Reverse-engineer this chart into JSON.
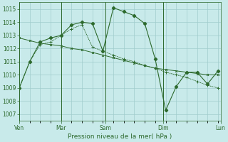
{
  "bg_color": "#c8eaea",
  "grid_color": "#a0cccc",
  "line_color": "#2d6a2d",
  "xlabel": "Pression niveau de la mer( hPa )",
  "ylim": [
    1006.5,
    1015.5
  ],
  "yticks": [
    1007,
    1008,
    1009,
    1010,
    1011,
    1012,
    1013,
    1014,
    1015
  ],
  "day_tick_pos": [
    0,
    16,
    33,
    55,
    77
  ],
  "day_tick_labels": [
    "Ven",
    "Mar",
    "Sam",
    "Dim",
    "Lun"
  ],
  "total_points": 77,
  "series1_x": [
    0,
    4,
    8,
    12,
    16,
    20,
    24,
    28,
    32,
    36,
    40,
    44,
    48,
    52,
    56,
    60,
    64,
    68,
    72,
    76
  ],
  "series1_y": [
    1009.0,
    1011.0,
    1012.5,
    1012.8,
    1013.0,
    1013.8,
    1014.0,
    1013.9,
    1011.8,
    1015.1,
    1014.8,
    1014.5,
    1013.9,
    1011.2,
    1007.3,
    1009.1,
    1010.2,
    1010.2,
    1009.3,
    1010.3
  ],
  "series2_x": [
    0,
    4,
    8,
    12,
    16,
    20,
    24,
    28,
    32,
    36,
    40,
    44,
    48,
    52,
    56,
    60,
    64,
    68,
    72,
    76
  ],
  "series2_y": [
    1012.8,
    1012.6,
    1012.4,
    1012.3,
    1012.2,
    1012.0,
    1011.9,
    1011.7,
    1011.5,
    1011.3,
    1011.1,
    1010.9,
    1010.7,
    1010.5,
    1010.4,
    1010.3,
    1010.2,
    1010.1,
    1010.0,
    1010.0
  ],
  "series3_x": [
    0,
    4,
    8,
    12,
    16,
    20,
    24,
    28,
    32,
    36,
    40,
    44,
    48,
    52,
    56,
    60,
    64,
    68,
    72,
    76
  ],
  "series3_y": [
    1009.0,
    1011.0,
    1012.3,
    1012.5,
    1013.0,
    1013.5,
    1013.8,
    1012.1,
    1011.8,
    1011.5,
    1011.2,
    1011.0,
    1010.7,
    1010.5,
    1010.2,
    1010.0,
    1009.8,
    1009.5,
    1009.2,
    1009.0
  ],
  "vline_positions": [
    0,
    16,
    33,
    55,
    77
  ]
}
